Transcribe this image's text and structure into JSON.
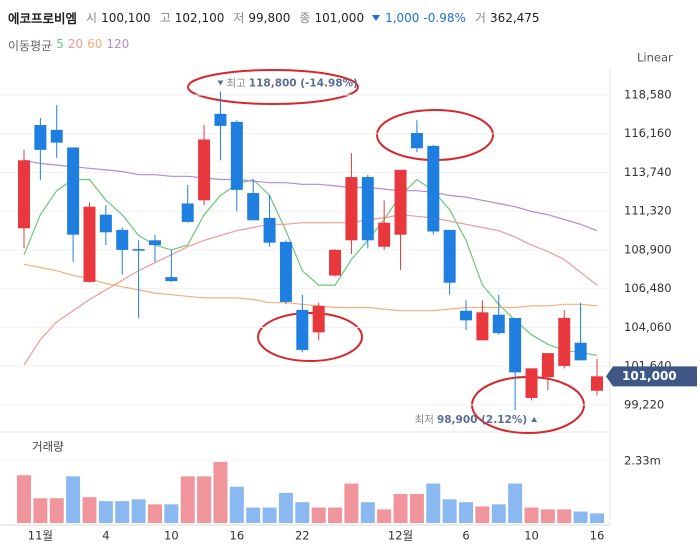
{
  "header": {
    "name": "에코프로비엠",
    "items": [
      {
        "label": "시",
        "value": "100,100"
      },
      {
        "label": "고",
        "value": "102,100"
      },
      {
        "label": "저",
        "value": "99,800"
      },
      {
        "label": "종",
        "value": "101,000"
      }
    ],
    "change": "1,000",
    "change_pct": "-0.98%",
    "volume_label": "거",
    "volume": "362,475"
  },
  "chart_data": {
    "type": "candlestick",
    "legend_title": "이동평균",
    "scale": "Linear",
    "up_color": "#e8383d",
    "down_color": "#1e7fe0",
    "grid": true,
    "categories": [
      null,
      "11월",
      null,
      null,
      null,
      "4",
      null,
      null,
      null,
      "10",
      null,
      null,
      null,
      "16",
      null,
      null,
      null,
      "22",
      null,
      null,
      null,
      null,
      null,
      "12월",
      null,
      null,
      null,
      "6",
      null,
      null,
      null,
      "10",
      null,
      null,
      null,
      "16"
    ],
    "open": [
      110250,
      116700,
      116400,
      115300,
      106900,
      111100,
      110150,
      108950,
      109500,
      107200,
      111800,
      112000,
      117400,
      116900,
      112450,
      110900,
      109400,
      105150,
      103750,
      107300,
      109500,
      113450,
      109100,
      109850,
      116200,
      115400,
      110150,
      105100,
      103250,
      104850,
      104650,
      99650,
      100950,
      101650,
      103100,
      100100
    ],
    "high": [
      115150,
      117150,
      117950,
      115300,
      111850,
      111700,
      110300,
      109500,
      109850,
      108900,
      112950,
      116700,
      118800,
      117000,
      113250,
      112350,
      109500,
      106100,
      105600,
      108950,
      114950,
      113600,
      112000,
      113900,
      117000,
      115450,
      110150,
      105750,
      105750,
      106100,
      104650,
      101500,
      102450,
      105150,
      105600,
      102100
    ],
    "low": [
      109000,
      113250,
      114650,
      108150,
      106850,
      109200,
      107350,
      104650,
      108150,
      106900,
      110600,
      111700,
      114500,
      111300,
      110750,
      109100,
      105500,
      102500,
      103250,
      107250,
      108650,
      109000,
      108900,
      107650,
      115000,
      109850,
      106100,
      103900,
      103250,
      103600,
      98900,
      99500,
      100150,
      101500,
      102000,
      99800
    ],
    "close": [
      114500,
      115150,
      115600,
      109850,
      111600,
      110000,
      108900,
      108850,
      109200,
      106950,
      110650,
      115800,
      116650,
      112650,
      110750,
      109350,
      105650,
      102650,
      105400,
      108900,
      113450,
      109500,
      110600,
      113900,
      115250,
      110050,
      106850,
      104500,
      105000,
      103700,
      101250,
      101500,
      102450,
      104650,
      102000,
      101000
    ],
    "series": [
      {
        "name": "5",
        "color": "#6cc77a",
        "values": [
          108600,
          111100,
          112600,
          113300,
          113300,
          112000,
          111100,
          109800,
          109200,
          108900,
          109200,
          111100,
          112300,
          113000,
          113300,
          112300,
          110100,
          107600,
          106700,
          106700,
          108300,
          109500,
          110800,
          112300,
          113300,
          112600,
          111400,
          109500,
          106700,
          105500,
          104500,
          103600,
          103000,
          102600,
          102500,
          102300
        ]
      },
      {
        "name": "20",
        "color": "#ee9a95",
        "values": [
          101700,
          103300,
          104400,
          105100,
          105800,
          106400,
          107000,
          107600,
          108100,
          108600,
          109100,
          109500,
          109800,
          110100,
          110300,
          110500,
          110500,
          110600,
          110600,
          110600,
          110600,
          110800,
          110900,
          111100,
          111000,
          110900,
          110700,
          110500,
          110300,
          110100,
          109700,
          109200,
          108800,
          108300,
          107500,
          106700
        ]
      },
      {
        "name": "60",
        "color": "#f2b27c",
        "values": [
          108000,
          107800,
          107600,
          107300,
          107100,
          106800,
          106600,
          106400,
          106200,
          106100,
          106000,
          105900,
          105900,
          105900,
          105800,
          105600,
          105600,
          105500,
          105400,
          105300,
          105300,
          105300,
          105200,
          105100,
          105100,
          105100,
          105200,
          105300,
          105300,
          105300,
          105300,
          105400,
          105400,
          105500,
          105500,
          105400
        ]
      },
      {
        "name": "120",
        "color": "#b58ad9",
        "values": [
          114500,
          114300,
          114200,
          114100,
          114000,
          113900,
          113800,
          113600,
          113600,
          113500,
          113500,
          113400,
          113300,
          113300,
          113200,
          113100,
          113100,
          113000,
          113000,
          112900,
          112800,
          112800,
          112700,
          112600,
          112600,
          112500,
          112300,
          112200,
          112000,
          111800,
          111600,
          111300,
          111100,
          110800,
          110500,
          110100
        ]
      }
    ],
    "ylim": [
      97960,
      120140
    ],
    "yticks": [
      {
        "value": 99220,
        "label": "99,220"
      },
      {
        "value": 101640,
        "label": "101,640"
      },
      {
        "value": 104060,
        "label": "104,060"
      },
      {
        "value": 106480,
        "label": "106,480"
      },
      {
        "value": 108900,
        "label": "108,900"
      },
      {
        "value": 111320,
        "label": "111,320"
      },
      {
        "value": 113740,
        "label": "113,740"
      },
      {
        "value": 116160,
        "label": "116,160"
      },
      {
        "value": 118580,
        "label": "118,580"
      }
    ],
    "last_price_label": "101,000",
    "high_annotation": {
      "label": "최고",
      "text": "118,800 (-14.98%)"
    },
    "low_annotation": {
      "label": "최저",
      "text": "98,900 (2.12%)"
    },
    "volume": {
      "name": "거래량",
      "up_color": "#f0959b",
      "down_color": "#8ab8f0",
      "values": [
        1790000,
        930000,
        930000,
        1750000,
        970000,
        820000,
        820000,
        890000,
        700000,
        700000,
        1750000,
        1750000,
        2290000,
        1360000,
        580000,
        580000,
        1130000,
        780000,
        580000,
        580000,
        1480000,
        780000,
        510000,
        1090000,
        1090000,
        1480000,
        890000,
        780000,
        620000,
        700000,
        1480000,
        580000,
        510000,
        510000,
        430000,
        362475
      ],
      "ylim": [
        0,
        3000000
      ],
      "yticks": [
        {
          "value": 2330000,
          "label": "2.33m"
        }
      ]
    }
  }
}
